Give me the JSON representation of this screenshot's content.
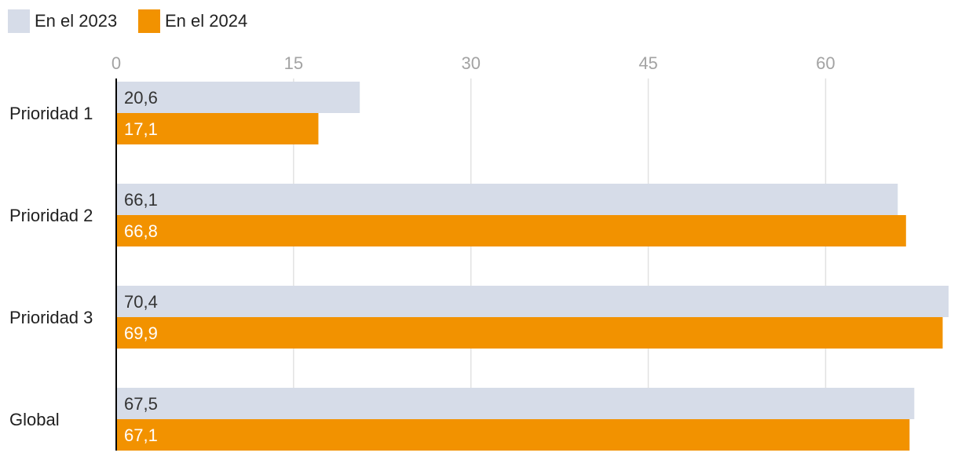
{
  "chart_data": {
    "type": "bar",
    "orientation": "horizontal",
    "categories": [
      "Prioridad 1",
      "Prioridad 2",
      "Prioridad 3",
      "Global"
    ],
    "series": [
      {
        "name": "En el 2023",
        "color": "#d6dce8",
        "label_color": "#333333",
        "values": [
          20.6,
          66.1,
          70.4,
          67.5
        ],
        "labels": [
          "20,6",
          "66,1",
          "70,4",
          "67,5"
        ]
      },
      {
        "name": "En el 2024",
        "color": "#f29200",
        "label_color": "#ffffff",
        "values": [
          17.1,
          66.8,
          69.9,
          67.1
        ],
        "labels": [
          "17,1",
          "66,8",
          "69,9",
          "67,1"
        ]
      }
    ],
    "xlim": [
      0,
      70.4
    ],
    "ticks": [
      0,
      15,
      30,
      45,
      60
    ],
    "tick_labels": [
      "0",
      "15",
      "30",
      "45",
      "60"
    ],
    "axis_position": "top",
    "grid": true,
    "legend_position": "top-left",
    "gridline_color": "#e2e2e2",
    "axis_line_color": "#000000"
  }
}
